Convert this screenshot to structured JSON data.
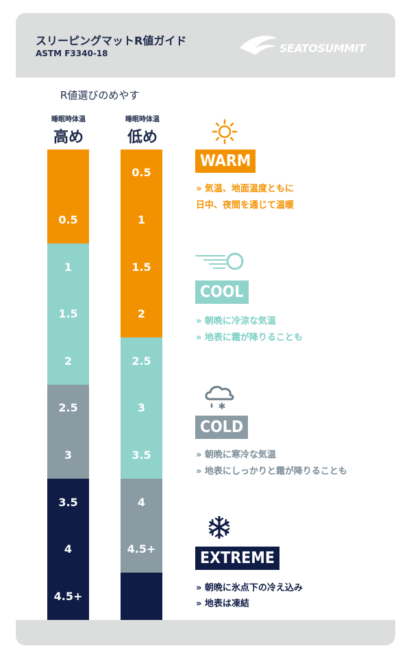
{
  "header": {
    "title": "スリーピングマットR値ガイド",
    "subtitle": "ASTM F3340-18",
    "logo_text": "SEATOSUMMIT"
  },
  "caption": "R値選びのめやす",
  "columns": [
    {
      "small": "睡眠時体温",
      "big": "高め"
    },
    {
      "small": "睡眠時体温",
      "big": "低め"
    }
  ],
  "bar_left": {
    "segments": [
      {
        "zone": "warm",
        "from": 0,
        "to": 1
      },
      {
        "zone": "cool",
        "from": 1,
        "to": 2.5
      },
      {
        "zone": "cold",
        "from": 2.5,
        "to": 3.5
      },
      {
        "zone": "extreme",
        "from": 3.5,
        "to": 5
      }
    ],
    "labels": [
      "0.5",
      "1",
      "1.5",
      "2",
      "2.5",
      "3",
      "3.5",
      "4",
      "4.5+"
    ]
  },
  "bar_right": {
    "segments": [
      {
        "zone": "warm",
        "from": 0,
        "to": 2
      },
      {
        "zone": "cool",
        "from": 2,
        "to": 3.5
      },
      {
        "zone": "cold",
        "from": 3.5,
        "to": 4.5
      },
      {
        "zone": "extreme",
        "from": 4.5,
        "to": 5
      }
    ],
    "labels": [
      "0.5",
      "1",
      "1.5",
      "2",
      "2.5",
      "3",
      "3.5",
      "4",
      "4.5+"
    ]
  },
  "colors": {
    "warm": "#f39200",
    "cool": "#8fd3cb",
    "cold": "#8a9ba4",
    "extreme": "#0f1c45",
    "cool_text": "#7ccfc5",
    "cold_text": "#7b8c96"
  },
  "zones": [
    {
      "key": "warm",
      "label": "WARM",
      "icon": "sun-icon",
      "lines": [
        "» 気温、地面温度ともに",
        "日中、夜間を通じて温暖"
      ]
    },
    {
      "key": "cool",
      "label": "COOL",
      "icon": "wind-icon",
      "lines": [
        "» 朝晩に冷涼な気温",
        "» 地表に霜が降りることも"
      ]
    },
    {
      "key": "cold",
      "label": "COLD",
      "icon": "cloud-snow-icon",
      "lines": [
        "» 朝晩に寒冷な気温",
        "» 地表にしっかりと霜が降りることも"
      ]
    },
    {
      "key": "extreme",
      "label": "EXTREME",
      "icon": "snowflake-icon",
      "lines": [
        "» 朝晩に氷点下の冷え込み",
        "» 地表は凍結"
      ]
    }
  ]
}
